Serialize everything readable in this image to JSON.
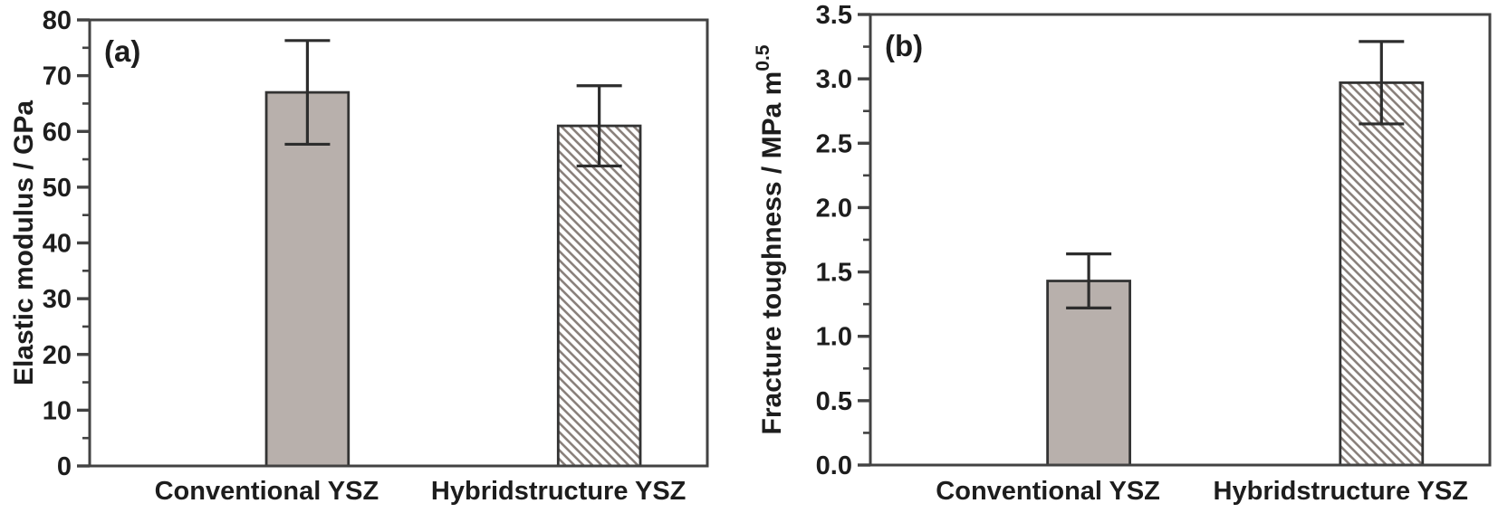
{
  "figure": {
    "description": "Two-panel bar chart comparing conventional and hybridstructure YSZ ceramics",
    "background": "#ffffff"
  },
  "colors": {
    "bar_fill": "#b8b0ac",
    "bar_edge": "#333333",
    "hatch_line": "#8a817c",
    "axis": "#424242",
    "error_bar": "#2d2d2d",
    "text": "#1d1d1d",
    "background": "#ffffff"
  },
  "chart_data": [
    {
      "type": "bar",
      "panel_label": "(a)",
      "title": "",
      "xlabel": "",
      "ylabel": "Elastic modulus / GPa",
      "ylabel_superscript": "",
      "ylim": [
        0,
        80
      ],
      "ytick_interval": 10,
      "minor_ytick_interval": 5,
      "yticks": [
        {
          "value": 0,
          "label": "0"
        },
        {
          "value": 10,
          "label": "10"
        },
        {
          "value": 20,
          "label": "20"
        },
        {
          "value": 30,
          "label": "30"
        },
        {
          "value": 40,
          "label": "40"
        },
        {
          "value": 50,
          "label": "50"
        },
        {
          "value": 60,
          "label": "60"
        },
        {
          "value": 70,
          "label": "70"
        },
        {
          "value": 80,
          "label": "80"
        }
      ],
      "minor_yticks": [
        5,
        15,
        25,
        35,
        45,
        55,
        65,
        75
      ],
      "categories": [
        "Conventional YSZ",
        "Hybridstructure YSZ"
      ],
      "values": [
        67,
        61
      ],
      "error_bars": [
        9.3,
        7.2
      ],
      "bar_styles": [
        "solid-gray",
        "diagonal-hatch"
      ],
      "grid": false,
      "legend": "none"
    },
    {
      "type": "bar",
      "panel_label": "(b)",
      "title": "",
      "xlabel": "",
      "ylabel": "Fracture toughness / MPa m",
      "ylabel_superscript": "0.5",
      "ylim": [
        0,
        3.5
      ],
      "ytick_interval": 0.5,
      "minor_ytick_interval": 0.25,
      "yticks": [
        {
          "value": 0,
          "label": "0.0"
        },
        {
          "value": 0.5,
          "label": "0.5"
        },
        {
          "value": 1,
          "label": "1.0"
        },
        {
          "value": 1.5,
          "label": "1.5"
        },
        {
          "value": 2,
          "label": "2.0"
        },
        {
          "value": 2.5,
          "label": "2.5"
        },
        {
          "value": 3,
          "label": "3.0"
        },
        {
          "value": 3.5,
          "label": "3.5"
        }
      ],
      "minor_yticks": [
        0.25,
        0.75,
        1.25,
        1.75,
        2.25,
        2.75,
        3.25
      ],
      "categories": [
        "Conventional YSZ",
        "Hybridstructure YSZ"
      ],
      "values": [
        1.43,
        2.97
      ],
      "error_bars": [
        0.21,
        0.32
      ],
      "bar_styles": [
        "solid-gray",
        "diagonal-hatch"
      ],
      "grid": false,
      "legend": "none"
    }
  ]
}
